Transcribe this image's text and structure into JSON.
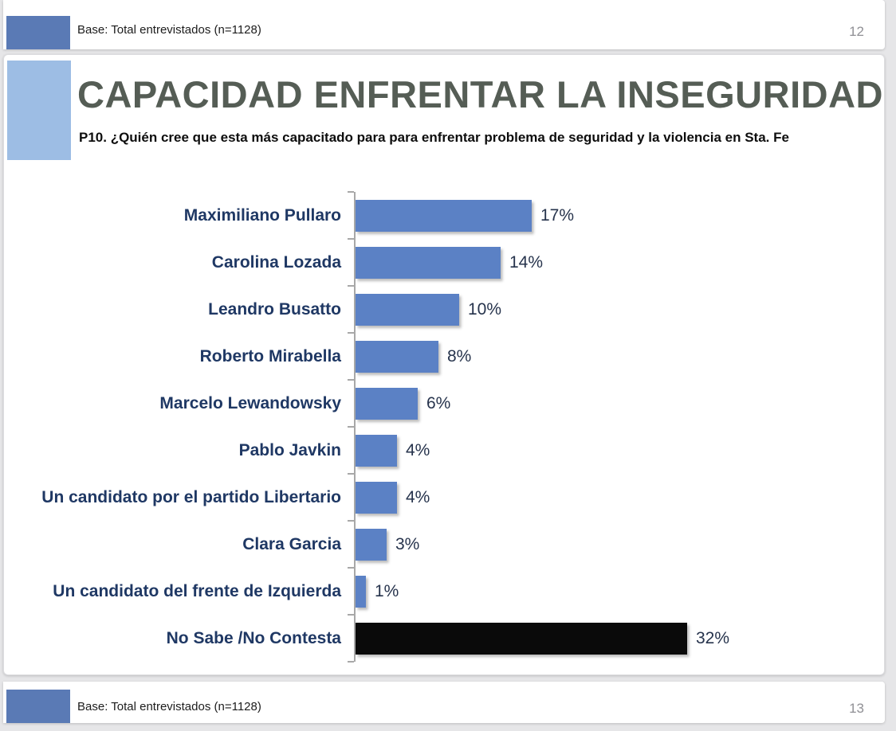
{
  "colors": {
    "page_background": "#e6e6e8",
    "panel_background": "#ffffff",
    "strip_rect_blue": "#5a7ab5",
    "slide_rect_blue": "#9dbde4",
    "title_text": "#555d55",
    "category_text": "#1f3864",
    "value_text": "#26334c",
    "bar_blue": "#5b81c5",
    "bar_black": "#0a0a0a",
    "axis_gray": "#a8a8a8",
    "page_number_gray": "#909095"
  },
  "top_strip": {
    "base_label": "Base: Total entrevistados (n=1128)",
    "page_number": "12"
  },
  "slide": {
    "title": "CAPACIDAD ENFRENTAR LA INSEGURIDAD",
    "subtitle": "P10. ¿Quién cree que esta más capacitado para para enfrentar problema de seguridad y la violencia en Sta. Fe"
  },
  "chart_data": {
    "type": "bar",
    "orientation": "horizontal",
    "title": "CAPACIDAD ENFRENTAR LA INSEGURIDAD",
    "subtitle": "P10. ¿Quién cree que esta más capacitado para para enfrentar problema de seguridad y la violencia en Sta. Fe",
    "unit": "%",
    "categories": [
      "Maximiliano Pullaro",
      "Carolina Lozada",
      "Leandro Busatto",
      "Roberto Mirabella",
      "Marcelo Lewandowsky",
      "Pablo Javkin",
      "Un candidato por el partido Libertario",
      "Clara Garcia",
      "Un candidato del frente de Izquierda",
      "No Sabe /No Contesta"
    ],
    "values": [
      17,
      14,
      10,
      8,
      6,
      4,
      4,
      3,
      1,
      32
    ],
    "value_labels": [
      "17%",
      "14%",
      "10%",
      "8%",
      "6%",
      "4%",
      "4%",
      "3%",
      "1%",
      "32%"
    ],
    "bar_colors": [
      "#5b81c5",
      "#5b81c5",
      "#5b81c5",
      "#5b81c5",
      "#5b81c5",
      "#5b81c5",
      "#5b81c5",
      "#5b81c5",
      "#5b81c5",
      "#0a0a0a"
    ],
    "value_axis_visible": false,
    "grid": false,
    "legend": false,
    "xlim": [
      0,
      35
    ]
  },
  "bottom_strip": {
    "base_label": "Base: Total entrevistados (n=1128)",
    "page_number": "13"
  }
}
